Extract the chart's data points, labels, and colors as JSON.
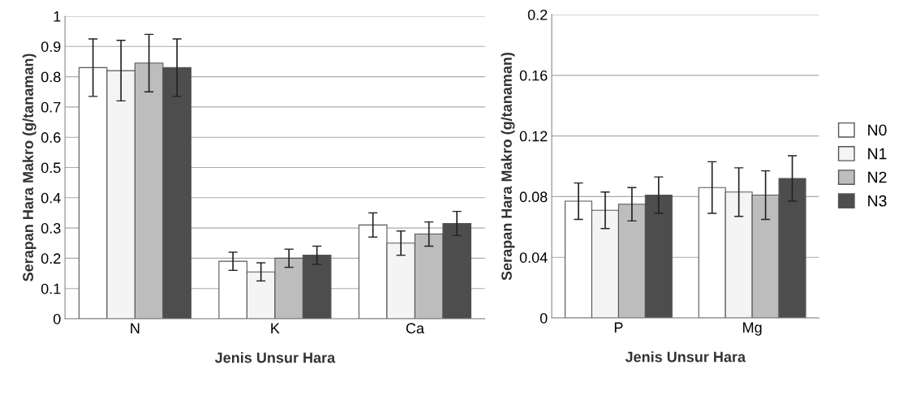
{
  "chart_data": [
    {
      "type": "bar",
      "xlabel": "Jenis Unsur Hara",
      "ylabel": "Serapan Hara Makro (g/tanaman)",
      "categories": [
        "N",
        "K",
        "Ca"
      ],
      "ylim": [
        0,
        1
      ],
      "yticks": [
        0,
        0.1,
        0.2,
        0.3,
        0.4,
        0.5,
        0.6,
        0.7,
        0.8,
        0.9,
        1
      ],
      "grid": "y",
      "legend": false,
      "series": [
        {
          "color": "#ffffff",
          "values": [
            0.83,
            0.19,
            0.31
          ],
          "errors": [
            0.095,
            0.03,
            0.04
          ]
        },
        {
          "color": "#f4f4f4",
          "values": [
            0.82,
            0.155,
            0.25
          ],
          "errors": [
            0.1,
            0.03,
            0.04
          ]
        },
        {
          "color": "#bdbdbd",
          "values": [
            0.845,
            0.2,
            0.28
          ],
          "errors": [
            0.095,
            0.03,
            0.04
          ]
        },
        {
          "color": "#4d4d4d",
          "values": [
            0.83,
            0.21,
            0.315
          ],
          "errors": [
            0.095,
            0.03,
            0.04
          ]
        }
      ]
    },
    {
      "type": "bar",
      "xlabel": "Jenis Unsur Hara",
      "ylabel": "Serapan Hara Makro (g/tanaman)",
      "categories": [
        "P",
        "Mg"
      ],
      "ylim": [
        0,
        0.2
      ],
      "yticks": [
        0,
        0.04,
        0.08,
        0.12,
        0.16,
        0.2
      ],
      "grid": "y",
      "legend": "right",
      "series": [
        {
          "name": "N0",
          "color": "#ffffff",
          "values": [
            0.077,
            0.086
          ],
          "errors": [
            0.012,
            0.017
          ]
        },
        {
          "name": "N1",
          "color": "#f4f4f4",
          "values": [
            0.071,
            0.083
          ],
          "errors": [
            0.012,
            0.016
          ]
        },
        {
          "name": "N2",
          "color": "#bdbdbd",
          "values": [
            0.075,
            0.081
          ],
          "errors": [
            0.011,
            0.016
          ]
        },
        {
          "name": "N3",
          "color": "#4d4d4d",
          "values": [
            0.081,
            0.092
          ],
          "errors": [
            0.012,
            0.015
          ]
        }
      ]
    }
  ]
}
